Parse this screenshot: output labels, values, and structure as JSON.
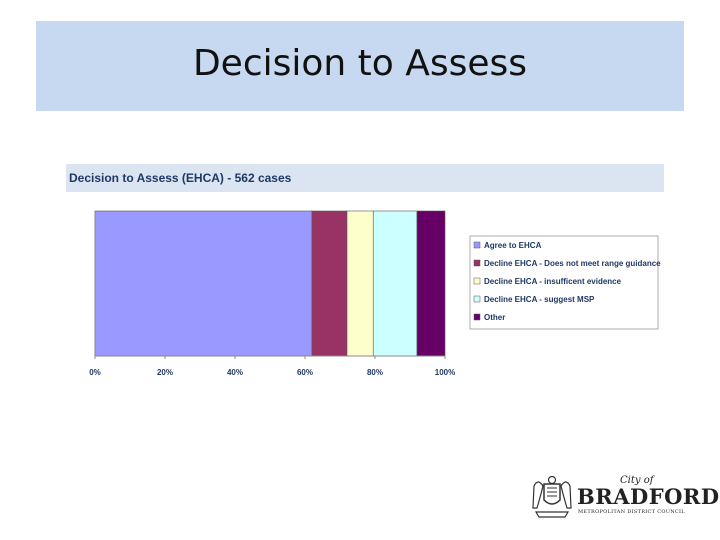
{
  "slide": {
    "title": "Decision to Assess"
  },
  "chart_data": {
    "type": "bar",
    "orientation": "horizontal",
    "stacked": true,
    "title": "Decision to Assess (EHCA) - 562 cases",
    "xlim": [
      0,
      100
    ],
    "x_ticks": [
      "0%",
      "20%",
      "40%",
      "60%",
      "80%",
      "100%"
    ],
    "legend_position": "right",
    "grid": false,
    "series": [
      {
        "name": "Agree to EHCA",
        "values": [
          62
        ],
        "color": "#9999ff"
      },
      {
        "name": "Decline EHCA - Does not meet range guidance",
        "values": [
          10
        ],
        "color": "#993366"
      },
      {
        "name": "Decline EHCA - insufficent evidence",
        "values": [
          7.5
        ],
        "color": "#ffffcc"
      },
      {
        "name": "Decline EHCA - suggest MSP",
        "values": [
          12.5
        ],
        "color": "#ccffff"
      },
      {
        "name": "Other",
        "values": [
          8
        ],
        "color": "#660066"
      }
    ]
  },
  "logo": {
    "city": "City of",
    "name": "BRADFORD",
    "subtitle": "METROPOLITAN DISTRICT COUNCIL"
  }
}
